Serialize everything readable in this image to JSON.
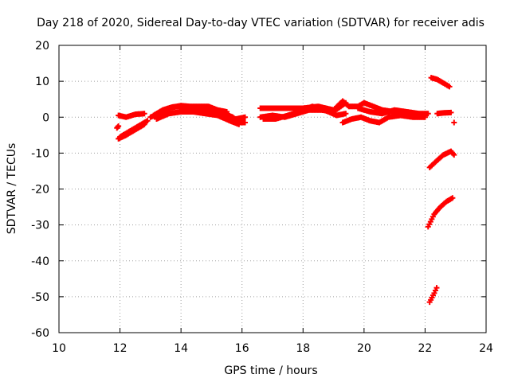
{
  "chart_data": {
    "type": "scatter",
    "title": "Day 218 of 2020, Sidereal Day-to-day VTEC variation (SDTVAR) for receiver adis",
    "xlabel": "GPS time / hours",
    "ylabel": "SDTVAR / TECUs",
    "xlim": [
      10,
      24
    ],
    "ylim": [
      -60,
      20
    ],
    "xticks": [
      "10",
      "12",
      "14",
      "16",
      "18",
      "20",
      "22",
      "24"
    ],
    "yticks": [
      "20",
      "10",
      "0",
      "-10",
      "-20",
      "-30",
      "-40",
      "-50",
      "-60"
    ],
    "grid": true,
    "series": [
      {
        "name": "SDTVAR",
        "color": "#ff0000",
        "marker": "plus",
        "tracks": [
          [
            [
              11.9,
              -3
            ],
            [
              11.95,
              -2.5
            ]
          ],
          [
            [
              11.95,
              0.5
            ],
            [
              12.2,
              0
            ],
            [
              12.5,
              0.8
            ],
            [
              12.8,
              1
            ]
          ],
          [
            [
              11.95,
              -6
            ],
            [
              12.2,
              -5
            ],
            [
              12.5,
              -3.5
            ],
            [
              12.8,
              -2
            ]
          ],
          [
            [
              12.0,
              -5.5
            ],
            [
              12.3,
              -4
            ],
            [
              12.6,
              -2.5
            ],
            [
              12.9,
              -1
            ]
          ],
          [
            [
              13.0,
              0
            ],
            [
              13.3,
              1
            ],
            [
              13.6,
              2.5
            ],
            [
              13.9,
              3
            ],
            [
              14.2,
              2.5
            ],
            [
              14.5,
              2
            ],
            [
              14.8,
              2.5
            ],
            [
              15.1,
              2
            ],
            [
              15.4,
              1
            ],
            [
              15.7,
              0
            ],
            [
              15.9,
              -1.5
            ],
            [
              16.1,
              -1.5
            ]
          ],
          [
            [
              13.1,
              0.5
            ],
            [
              13.4,
              2
            ],
            [
              13.7,
              2.8
            ],
            [
              14.0,
              3.2
            ],
            [
              14.3,
              3
            ],
            [
              14.6,
              3
            ],
            [
              14.9,
              3
            ],
            [
              15.2,
              2
            ],
            [
              15.5,
              1.5
            ]
          ],
          [
            [
              13.2,
              -0.5
            ],
            [
              13.6,
              1
            ],
            [
              14.0,
              1.5
            ],
            [
              14.4,
              1.5
            ],
            [
              14.8,
              1
            ],
            [
              15.2,
              0.5
            ],
            [
              15.6,
              -1
            ],
            [
              15.9,
              -2
            ]
          ],
          [
            [
              15.5,
              0
            ],
            [
              15.8,
              -0.5
            ],
            [
              16.1,
              0
            ]
          ],
          [
            [
              16.6,
              2.5
            ],
            [
              17.0,
              2.5
            ],
            [
              17.5,
              2.5
            ],
            [
              18.0,
              2.5
            ],
            [
              18.5,
              3
            ],
            [
              19.0,
              2
            ]
          ],
          [
            [
              16.6,
              0
            ],
            [
              17.0,
              0.5
            ],
            [
              17.4,
              0
            ],
            [
              17.8,
              1
            ],
            [
              18.2,
              2
            ],
            [
              18.6,
              2
            ],
            [
              19.0,
              1.5
            ],
            [
              19.4,
              4
            ]
          ],
          [
            [
              16.7,
              -0.5
            ],
            [
              17.1,
              -0.5
            ],
            [
              17.5,
              0.5
            ],
            [
              17.9,
              1.5
            ],
            [
              18.3,
              3
            ],
            [
              18.7,
              2
            ],
            [
              19.1,
              0.5
            ],
            [
              19.4,
              1
            ]
          ],
          [
            [
              19.0,
              2
            ],
            [
              19.3,
              4.5
            ],
            [
              19.5,
              3
            ],
            [
              19.8,
              3
            ],
            [
              20.0,
              4
            ],
            [
              20.3,
              3
            ],
            [
              20.6,
              2
            ],
            [
              21.0,
              1.5
            ],
            [
              21.5,
              1
            ],
            [
              22.0,
              0.5
            ]
          ],
          [
            [
              19.3,
              -1.5
            ],
            [
              19.6,
              -0.5
            ],
            [
              19.9,
              0
            ],
            [
              20.2,
              -1
            ],
            [
              20.5,
              -1.5
            ],
            [
              20.8,
              0
            ],
            [
              21.2,
              0.5
            ],
            [
              21.6,
              0
            ],
            [
              22.0,
              0
            ]
          ],
          [
            [
              19.8,
              2.5
            ],
            [
              20.2,
              1.5
            ],
            [
              20.6,
              1
            ],
            [
              21.0,
              2
            ],
            [
              21.4,
              1.5
            ],
            [
              21.8,
              1
            ],
            [
              22.1,
              1
            ]
          ],
          [
            [
              22.2,
              11
            ],
            [
              22.4,
              10.5
            ],
            [
              22.6,
              9.5
            ],
            [
              22.8,
              8.5
            ]
          ],
          [
            [
              22.4,
              1
            ],
            [
              22.6,
              1.2
            ],
            [
              22.85,
              1.3
            ]
          ],
          [
            [
              22.95,
              -1.5
            ]
          ],
          [
            [
              22.15,
              -14
            ],
            [
              22.4,
              -12
            ],
            [
              22.6,
              -10.5
            ],
            [
              22.85,
              -9.5
            ],
            [
              22.95,
              -10.5
            ]
          ],
          [
            [
              22.1,
              -30.5
            ],
            [
              22.3,
              -27
            ],
            [
              22.5,
              -25
            ],
            [
              22.7,
              -23.5
            ],
            [
              22.9,
              -22.5
            ]
          ],
          [
            [
              22.15,
              -51.5
            ],
            [
              22.3,
              -49
            ],
            [
              22.38,
              -47.5
            ]
          ]
        ]
      }
    ]
  }
}
